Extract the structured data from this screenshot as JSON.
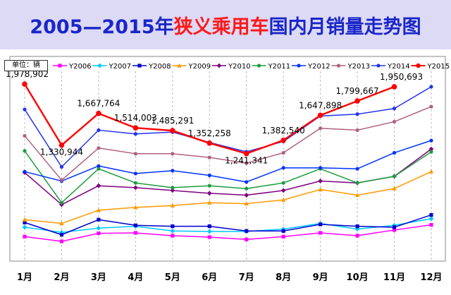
{
  "header": {
    "title_years": "2005—2015年",
    "title_highlight": "狭义乘用车",
    "title_rest": "国内月销量走势图"
  },
  "unit_label": "单位：辆",
  "chart_data": {
    "type": "line",
    "title": "2005—2015年狭义乘用车国内月销量走势图",
    "xlabel": "",
    "ylabel": "",
    "categories": [
      "1月",
      "2月",
      "3月",
      "4月",
      "5月",
      "6月",
      "7月",
      "8月",
      "9月",
      "10月",
      "11月",
      "12月"
    ],
    "ylim": [
      100000,
      2100000
    ],
    "grid": true,
    "legend_position": "top",
    "series": [
      {
        "name": "Y2006",
        "color": "#ff00ff",
        "marker": "square",
        "values": [
          360000,
          310000,
          395000,
          400000,
          370000,
          355000,
          330000,
          360000,
          400000,
          370000,
          430000,
          485000
        ]
      },
      {
        "name": "Y2007",
        "color": "#00c8ff",
        "marker": "diamond",
        "values": [
          460000,
          405000,
          450000,
          470000,
          420000,
          415000,
          415000,
          440000,
          500000,
          440000,
          480000,
          550000
        ]
      },
      {
        "name": "Y2008",
        "color": "#0000cc",
        "marker": "square",
        "values": [
          510000,
          380000,
          540000,
          480000,
          470000,
          470000,
          420000,
          420000,
          490000,
          470000,
          460000,
          590000
        ]
      },
      {
        "name": "Y2009",
        "color": "#ff9900",
        "marker": "triangle",
        "values": [
          540000,
          500000,
          640000,
          670000,
          690000,
          720000,
          710000,
          750000,
          860000,
          800000,
          870000,
          1050000
        ]
      },
      {
        "name": "Y2010",
        "color": "#800080",
        "marker": "diamond",
        "values": [
          1040000,
          700000,
          900000,
          880000,
          850000,
          820000,
          800000,
          850000,
          950000,
          930000,
          1000000,
          1290000
        ]
      },
      {
        "name": "Y2011",
        "color": "#1a9e3a",
        "marker": "circle",
        "values": [
          1270000,
          720000,
          1080000,
          930000,
          880000,
          900000,
          870000,
          930000,
          1080000,
          930000,
          1000000,
          1260000
        ]
      },
      {
        "name": "Y2012",
        "color": "#0033ff",
        "marker": "circle",
        "values": [
          1050000,
          950000,
          1110000,
          1030000,
          1060000,
          1010000,
          940000,
          1090000,
          1090000,
          1080000,
          1250000,
          1380000
        ]
      },
      {
        "name": "Y2013",
        "color": "#b06080",
        "marker": "circle",
        "values": [
          1430000,
          960000,
          1300000,
          1240000,
          1240000,
          1200000,
          1140000,
          1250000,
          1510000,
          1490000,
          1580000,
          1740000
        ]
      },
      {
        "name": "Y2014",
        "color": "#2233ee",
        "marker": "circle",
        "values": [
          1710000,
          1100000,
          1490000,
          1450000,
          1470000,
          1360000,
          1260000,
          1370000,
          1640000,
          1660000,
          1720000,
          1950693
        ]
      },
      {
        "name": "Y2015",
        "color": "#ff0000",
        "marker": "circle",
        "values": [
          1978902,
          1330944,
          1667764,
          1514003,
          1485291,
          1352258,
          1241341,
          1382540,
          1647898,
          1799667,
          1950693,
          null
        ]
      }
    ],
    "data_labels": [
      {
        "series": "Y2015",
        "index": 0,
        "text": "1,978,902"
      },
      {
        "series": "Y2015",
        "index": 1,
        "text": "1,330,944"
      },
      {
        "series": "Y2015",
        "index": 2,
        "text": "1,667,764"
      },
      {
        "series": "Y2015",
        "index": 3,
        "text": "1,514,003"
      },
      {
        "series": "Y2015",
        "index": 4,
        "text": "1,485,291"
      },
      {
        "series": "Y2015",
        "index": 5,
        "text": "1,352,258"
      },
      {
        "series": "Y2015",
        "index": 6,
        "text": "1,241,341"
      },
      {
        "series": "Y2015",
        "index": 7,
        "text": "1,382,540"
      },
      {
        "series": "Y2015",
        "index": 8,
        "text": "1,647,898"
      },
      {
        "series": "Y2015",
        "index": 9,
        "text": "1,799,667"
      },
      {
        "series": "Y2015",
        "index": 10,
        "text": "1,950,693"
      }
    ]
  }
}
